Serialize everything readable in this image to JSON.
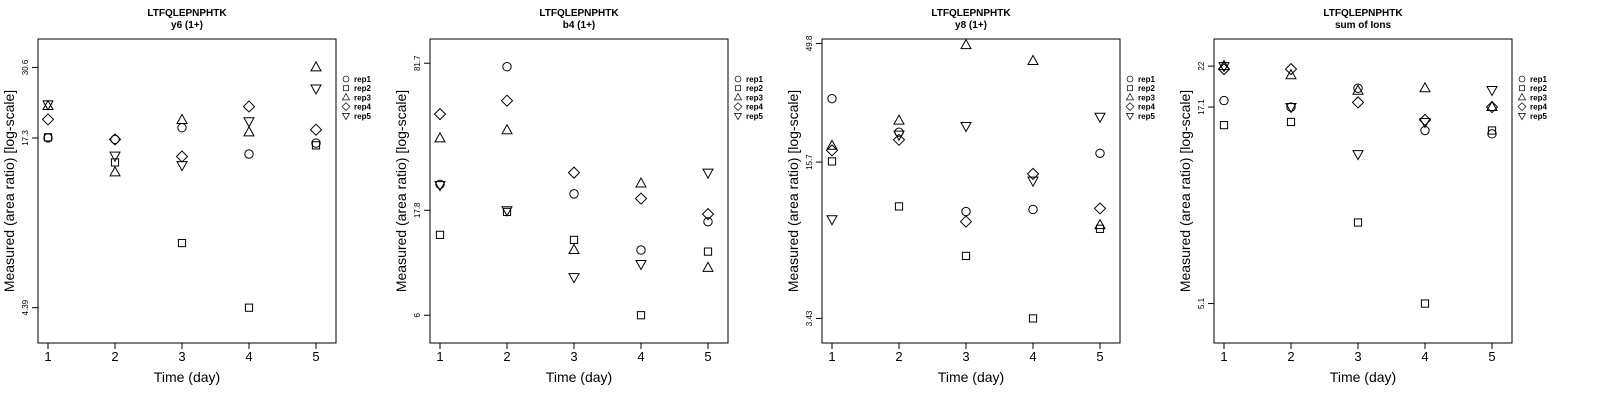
{
  "chart_data": [
    {
      "type": "scatter",
      "title": "LTFQLEPNPHTK",
      "subtitle": "y6 (1+)",
      "xlabel": "Time (day)",
      "ylabel": "Measured (area ratio) [log-scale]",
      "x": [
        1,
        2,
        3,
        4,
        5
      ],
      "xticks": [
        "1",
        "2",
        "3",
        "4",
        "5"
      ],
      "yticks": [
        4.39,
        17.3,
        30.6
      ],
      "ytick_labels": [
        "4.39",
        "17.3",
        "30.6"
      ],
      "ylim": [
        3.3,
        38.5
      ],
      "log_y": true,
      "series": [
        {
          "name": "rep1",
          "marker": "circle",
          "values": [
            17.3,
            17.1,
            18.8,
            15.2,
            16.6
          ]
        },
        {
          "name": "rep2",
          "marker": "square",
          "values": [
            17.4,
            14.2,
            7.4,
            4.39,
            16.3
          ]
        },
        {
          "name": "rep3",
          "marker": "triangle-up",
          "values": [
            22.4,
            13.1,
            20.0,
            18.1,
            30.6
          ]
        },
        {
          "name": "rep4",
          "marker": "diamond",
          "values": [
            20.1,
            17.1,
            14.9,
            22.3,
            18.5
          ]
        },
        {
          "name": "rep5",
          "marker": "triangle-down",
          "values": [
            22.7,
            15.0,
            13.9,
            19.8,
            25.8
          ]
        }
      ]
    },
    {
      "type": "scatter",
      "title": "LTFQLEPNPHTK",
      "subtitle": "b4 (1+)",
      "xlabel": "Time (day)",
      "ylabel": "Measured (area ratio) [log-scale]",
      "x": [
        1,
        2,
        3,
        4,
        5
      ],
      "xticks": [
        "1",
        "2",
        "3",
        "4",
        "5"
      ],
      "yticks": [
        6,
        17.8,
        81.7
      ],
      "ytick_labels": [
        "6",
        "17.8",
        "81.7"
      ],
      "ylim": [
        4.5,
        105
      ],
      "log_y": true,
      "series": [
        {
          "name": "rep1",
          "marker": "circle",
          "values": [
            23.3,
            78.8,
            21.1,
            11.8,
            15.8
          ]
        },
        {
          "name": "rep2",
          "marker": "square",
          "values": [
            13.8,
            17.5,
            13.1,
            6.0,
            11.6
          ]
        },
        {
          "name": "rep3",
          "marker": "triangle-up",
          "values": [
            37.5,
            40.8,
            11.8,
            23.5,
            9.8
          ]
        },
        {
          "name": "rep4",
          "marker": "diamond",
          "values": [
            48.2,
            55.4,
            26.3,
            20.1,
            17.1
          ]
        },
        {
          "name": "rep5",
          "marker": "triangle-down",
          "values": [
            23.1,
            17.8,
            8.9,
            10.2,
            26.3
          ]
        }
      ]
    },
    {
      "type": "scatter",
      "title": "LTFQLEPNPHTK",
      "subtitle": "y8 (1+)",
      "xlabel": "Time (day)",
      "ylabel": "Measured (area ratio) [log-scale]",
      "x": [
        1,
        2,
        3,
        4,
        5
      ],
      "xticks": [
        "1",
        "2",
        "3",
        "4",
        "5"
      ],
      "yticks": [
        3.43,
        15.7,
        49.8
      ],
      "ytick_labels": [
        "3.43",
        "15.7",
        "49.8"
      ],
      "ylim": [
        2.7,
        52
      ],
      "log_y": true,
      "series": [
        {
          "name": "rep1",
          "marker": "circle",
          "values": [
            29.1,
            21.0,
            9.7,
            9.9,
            17.1
          ]
        },
        {
          "name": "rep2",
          "marker": "square",
          "values": [
            15.8,
            10.2,
            6.3,
            3.43,
            8.2
          ]
        },
        {
          "name": "rep3",
          "marker": "triangle-up",
          "values": [
            18.4,
            23.5,
            49.0,
            42.0,
            8.5
          ]
        },
        {
          "name": "rep4",
          "marker": "diamond",
          "values": [
            17.6,
            19.5,
            8.8,
            14.0,
            10.0
          ]
        },
        {
          "name": "rep5",
          "marker": "triangle-down",
          "values": [
            9.0,
            20.5,
            22.3,
            13.1,
            24.4
          ]
        }
      ]
    },
    {
      "type": "scatter",
      "title": "LTFQLEPNPHTK",
      "subtitle": "sum of Ions",
      "xlabel": "Time (day)",
      "ylabel": "Measured (area ratio) [log-scale]",
      "x": [
        1,
        2,
        3,
        4,
        5
      ],
      "xticks": [
        "1",
        "2",
        "3",
        "4",
        "5"
      ],
      "yticks": [
        5.1,
        17.1,
        22
      ],
      "ytick_labels": [
        "5.1",
        "17.1",
        "22"
      ],
      "ylim": [
        4.0,
        26.0
      ],
      "log_y": true,
      "series": [
        {
          "name": "rep1",
          "marker": "circle",
          "values": [
            17.8,
            17.1,
            19.2,
            14.8,
            14.5
          ]
        },
        {
          "name": "rep2",
          "marker": "square",
          "values": [
            15.3,
            15.6,
            8.4,
            5.1,
            14.8
          ]
        },
        {
          "name": "rep3",
          "marker": "triangle-up",
          "values": [
            22.0,
            20.8,
            18.9,
            19.2,
            17.1
          ]
        },
        {
          "name": "rep4",
          "marker": "diamond",
          "values": [
            21.6,
            21.6,
            17.6,
            15.8,
            17.1
          ]
        },
        {
          "name": "rep5",
          "marker": "triangle-down",
          "values": [
            22.0,
            17.1,
            12.8,
            15.6,
            19.0
          ]
        }
      ]
    }
  ]
}
